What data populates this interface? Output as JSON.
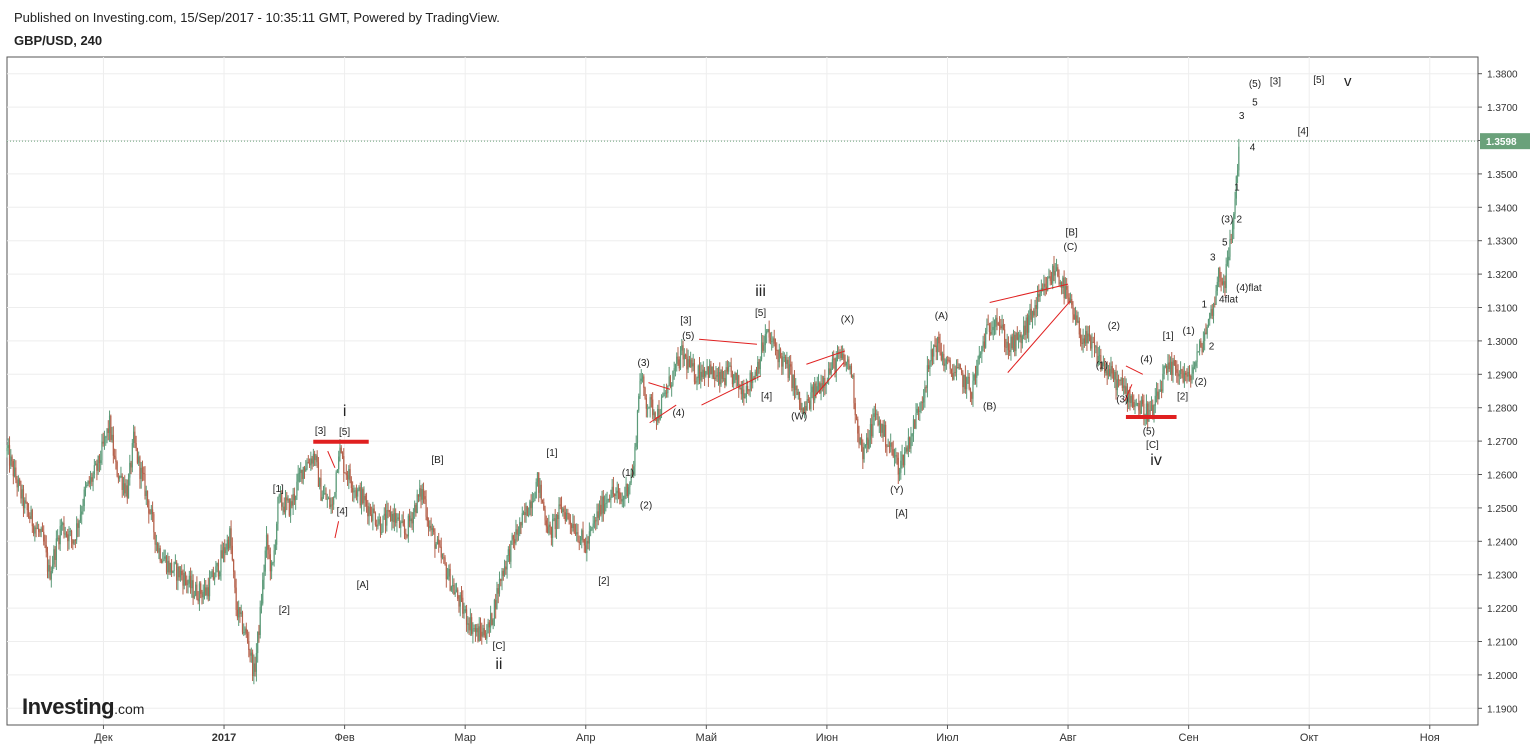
{
  "header": {
    "published": "Published on Investing.com, 15/Sep/2017 - 10:35:11 GMT, Powered by TradingView.",
    "symbol": "GBP/USD, 240"
  },
  "logo": {
    "main": "Investing",
    "suffix": ".com"
  },
  "chart_data": {
    "type": "candlestick",
    "title": "GBP/USD, 240",
    "ylim": [
      1.185,
      1.385
    ],
    "y_ticks": [
      "1.3800",
      "1.3700",
      "1.3600",
      "1.3500",
      "1.3400",
      "1.3300",
      "1.3200",
      "1.3100",
      "1.3000",
      "1.2900",
      "1.2800",
      "1.2700",
      "1.2600",
      "1.2500",
      "1.2400",
      "1.2300",
      "1.2200",
      "1.2100",
      "1.2000",
      "1.1900"
    ],
    "x_ticks": [
      {
        "label": "Дек",
        "t": 0.8
      },
      {
        "label": "2017",
        "t": 1.8
      },
      {
        "label": "Фев",
        "t": 2.8
      },
      {
        "label": "Мар",
        "t": 3.8
      },
      {
        "label": "Апр",
        "t": 4.8
      },
      {
        "label": "Май",
        "t": 5.8
      },
      {
        "label": "Июн",
        "t": 6.8
      },
      {
        "label": "Июл",
        "t": 7.8
      },
      {
        "label": "Авг",
        "t": 8.8
      },
      {
        "label": "Сен",
        "t": 9.8
      },
      {
        "label": "Окт",
        "t": 10.8
      },
      {
        "label": "Ноя",
        "t": 11.8
      }
    ],
    "bold_x_tick": "2017",
    "xlim": [
      0,
      12.2
    ],
    "last_price": {
      "value": 1.3598,
      "label": "1.3598",
      "color": "#6aa17a"
    },
    "colors": {
      "up": "#5b9a78",
      "down": "#b5604a",
      "annotation_line": "#e02020",
      "grid": "#eeeeee"
    },
    "price_path": [
      [
        0.0,
        1.267
      ],
      [
        0.15,
        1.25
      ],
      [
        0.3,
        1.24
      ],
      [
        0.35,
        1.23
      ],
      [
        0.45,
        1.245
      ],
      [
        0.55,
        1.24
      ],
      [
        0.65,
        1.255
      ],
      [
        0.75,
        1.262
      ],
      [
        0.85,
        1.275
      ],
      [
        0.9,
        1.262
      ],
      [
        1.0,
        1.255
      ],
      [
        1.05,
        1.27
      ],
      [
        1.1,
        1.262
      ],
      [
        1.15,
        1.255
      ],
      [
        1.25,
        1.238
      ],
      [
        1.35,
        1.232
      ],
      [
        1.45,
        1.23
      ],
      [
        1.55,
        1.225
      ],
      [
        1.65,
        1.225
      ],
      [
        1.75,
        1.232
      ],
      [
        1.85,
        1.242
      ],
      [
        1.9,
        1.22
      ],
      [
        2.0,
        1.21
      ],
      [
        2.05,
        1.2
      ],
      [
        2.1,
        1.218
      ],
      [
        2.15,
        1.24
      ],
      [
        2.2,
        1.23
      ],
      [
        2.25,
        1.252
      ],
      [
        2.35,
        1.25
      ],
      [
        2.45,
        1.262
      ],
      [
        2.55,
        1.266
      ],
      [
        2.6,
        1.255
      ],
      [
        2.7,
        1.25
      ],
      [
        2.75,
        1.268
      ],
      [
        2.8,
        1.262
      ],
      [
        2.9,
        1.255
      ],
      [
        3.0,
        1.25
      ],
      [
        3.1,
        1.245
      ],
      [
        3.2,
        1.248
      ],
      [
        3.3,
        1.242
      ],
      [
        3.4,
        1.252
      ],
      [
        3.45,
        1.255
      ],
      [
        3.5,
        1.245
      ],
      [
        3.6,
        1.235
      ],
      [
        3.7,
        1.226
      ],
      [
        3.8,
        1.218
      ],
      [
        3.9,
        1.212
      ],
      [
        4.0,
        1.214
      ],
      [
        4.1,
        1.23
      ],
      [
        4.2,
        1.24
      ],
      [
        4.3,
        1.248
      ],
      [
        4.4,
        1.258
      ],
      [
        4.5,
        1.242
      ],
      [
        4.6,
        1.25
      ],
      [
        4.7,
        1.245
      ],
      [
        4.8,
        1.238
      ],
      [
        4.9,
        1.248
      ],
      [
        5.0,
        1.255
      ],
      [
        5.1,
        1.252
      ],
      [
        5.2,
        1.262
      ],
      [
        5.25,
        1.29
      ],
      [
        5.3,
        1.282
      ],
      [
        5.4,
        1.278
      ],
      [
        5.5,
        1.288
      ],
      [
        5.6,
        1.296
      ],
      [
        5.7,
        1.29
      ],
      [
        5.8,
        1.292
      ],
      [
        5.9,
        1.288
      ],
      [
        6.0,
        1.29
      ],
      [
        6.1,
        1.285
      ],
      [
        6.2,
        1.29
      ],
      [
        6.3,
        1.302
      ],
      [
        6.4,
        1.296
      ],
      [
        6.5,
        1.29
      ],
      [
        6.6,
        1.278
      ],
      [
        6.7,
        1.285
      ],
      [
        6.8,
        1.29
      ],
      [
        6.9,
        1.295
      ],
      [
        7.0,
        1.292
      ],
      [
        7.05,
        1.275
      ],
      [
        7.1,
        1.265
      ],
      [
        7.2,
        1.278
      ],
      [
        7.3,
        1.27
      ],
      [
        7.4,
        1.262
      ],
      [
        7.5,
        1.272
      ],
      [
        7.6,
        1.285
      ],
      [
        7.7,
        1.3
      ],
      [
        7.8,
        1.292
      ],
      [
        7.9,
        1.29
      ],
      [
        8.0,
        1.285
      ],
      [
        8.1,
        1.3
      ],
      [
        8.2,
        1.308
      ],
      [
        8.3,
        1.298
      ],
      [
        8.4,
        1.3
      ],
      [
        8.5,
        1.308
      ],
      [
        8.6,
        1.315
      ],
      [
        8.7,
        1.322
      ],
      [
        8.8,
        1.312
      ],
      [
        8.9,
        1.302
      ],
      [
        9.0,
        1.298
      ],
      [
        9.1,
        1.292
      ],
      [
        9.2,
        1.288
      ],
      [
        9.3,
        1.284
      ],
      [
        9.4,
        1.28
      ],
      [
        9.5,
        1.278
      ],
      [
        9.6,
        1.29
      ],
      [
        9.7,
        1.292
      ],
      [
        9.8,
        1.288
      ],
      [
        9.9,
        1.298
      ],
      [
        10.0,
        1.31
      ],
      [
        10.05,
        1.32
      ],
      [
        10.1,
        1.318
      ],
      [
        10.15,
        1.33
      ],
      [
        10.18,
        1.34
      ],
      [
        10.2,
        1.35
      ],
      [
        10.22,
        1.3598
      ]
    ],
    "annotations": [
      {
        "text": "i",
        "t": 2.8,
        "p": 1.2775,
        "size": 16
      },
      {
        "text": "[3]",
        "t": 2.6,
        "p": 1.2722
      },
      {
        "text": "[5]",
        "t": 2.8,
        "p": 1.2718
      },
      {
        "text": "[1]",
        "t": 2.25,
        "p": 1.2547
      },
      {
        "text": "[2]",
        "t": 2.3,
        "p": 1.2185
      },
      {
        "text": "[4]",
        "t": 2.78,
        "p": 1.248
      },
      {
        "text": "[A]",
        "t": 2.95,
        "p": 1.226
      },
      {
        "text": "[B]",
        "t": 3.57,
        "p": 1.2635
      },
      {
        "text": "[C]",
        "t": 4.08,
        "p": 1.2078
      },
      {
        "text": "ii",
        "t": 4.08,
        "p": 1.2018,
        "size": 16
      },
      {
        "text": "[1]",
        "t": 4.52,
        "p": 1.2655
      },
      {
        "text": "[2]",
        "t": 4.95,
        "p": 1.2272
      },
      {
        "text": "(1)",
        "t": 5.15,
        "p": 1.2595
      },
      {
        "text": "(2)",
        "t": 5.3,
        "p": 1.2498
      },
      {
        "text": "(3)",
        "t": 5.28,
        "p": 1.2925
      },
      {
        "text": "(4)",
        "t": 5.57,
        "p": 1.2775
      },
      {
        "text": "[3]",
        "t": 5.63,
        "p": 1.3052
      },
      {
        "text": "(5)",
        "t": 5.65,
        "p": 1.3005
      },
      {
        "text": "[4]",
        "t": 6.3,
        "p": 1.2825
      },
      {
        "text": "[5]",
        "t": 6.25,
        "p": 1.3075
      },
      {
        "text": "iii",
        "t": 6.25,
        "p": 1.3135,
        "size": 16
      },
      {
        "text": "(W)",
        "t": 6.57,
        "p": 1.2765
      },
      {
        "text": "(X)",
        "t": 6.97,
        "p": 1.3055
      },
      {
        "text": "(Y)",
        "t": 7.38,
        "p": 1.2545
      },
      {
        "text": "[A]",
        "t": 7.42,
        "p": 1.2475
      },
      {
        "text": "(A)",
        "t": 7.75,
        "p": 1.3065
      },
      {
        "text": "(B)",
        "t": 8.15,
        "p": 1.2795
      },
      {
        "text": "(C)",
        "t": 8.82,
        "p": 1.3272
      },
      {
        "text": "[B]",
        "t": 8.83,
        "p": 1.3315
      },
      {
        "text": "(2)",
        "t": 9.18,
        "p": 1.3035
      },
      {
        "text": "(1)",
        "t": 9.08,
        "p": 1.2918
      },
      {
        "text": "(4)",
        "t": 9.45,
        "p": 1.2935
      },
      {
        "text": "(3)",
        "t": 9.25,
        "p": 1.2815
      },
      {
        "text": "(5)",
        "t": 9.47,
        "p": 1.272
      },
      {
        "text": "[C]",
        "t": 9.5,
        "p": 1.268
      },
      {
        "text": "iv",
        "t": 9.53,
        "p": 1.2628,
        "size": 16
      },
      {
        "text": "[1]",
        "t": 9.63,
        "p": 1.3005
      },
      {
        "text": "[2]",
        "t": 9.75,
        "p": 1.2825
      },
      {
        "text": "(1)",
        "t": 9.8,
        "p": 1.302
      },
      {
        "text": "(2)",
        "t": 9.9,
        "p": 1.2868
      },
      {
        "text": "2",
        "t": 9.99,
        "p": 1.2975
      },
      {
        "text": "1",
        "t": 9.93,
        "p": 1.31
      },
      {
        "text": "4flat",
        "t": 10.13,
        "p": 1.3115
      },
      {
        "text": "3",
        "t": 10.0,
        "p": 1.324
      },
      {
        "text": "5",
        "t": 10.1,
        "p": 1.3285
      },
      {
        "text": "(3)",
        "t": 10.12,
        "p": 1.3355
      },
      {
        "text": "2",
        "t": 10.22,
        "p": 1.3355
      },
      {
        "text": "(4)flat",
        "t": 10.3,
        "p": 1.315
      },
      {
        "text": "1",
        "t": 10.2,
        "p": 1.345
      },
      {
        "text": "4",
        "t": 10.33,
        "p": 1.357
      },
      {
        "text": "3",
        "t": 10.24,
        "p": 1.3665
      },
      {
        "text": "5",
        "t": 10.35,
        "p": 1.3705
      },
      {
        "text": "(5)",
        "t": 10.35,
        "p": 1.376
      },
      {
        "text": "[3]",
        "t": 10.52,
        "p": 1.3767
      },
      {
        "text": "[5]",
        "t": 10.88,
        "p": 1.3772
      },
      {
        "text": "v",
        "t": 11.12,
        "p": 1.3763,
        "size": 15
      },
      {
        "text": "[4]",
        "t": 10.75,
        "p": 1.3618
      }
    ],
    "support_lines": [
      {
        "t1": 2.54,
        "t2": 3.0,
        "p": 1.2698,
        "width": 4
      },
      {
        "t1": 9.28,
        "t2": 9.7,
        "p": 1.2772,
        "width": 4
      }
    ],
    "channel_lines": [
      [
        [
          5.32,
          1.2875
        ],
        [
          5.5,
          1.2855
        ]
      ],
      [
        [
          5.33,
          1.2755
        ],
        [
          5.55,
          1.2808
        ]
      ],
      [
        [
          5.74,
          1.3005
        ],
        [
          6.22,
          1.299
        ]
      ],
      [
        [
          5.76,
          1.2808
        ],
        [
          6.25,
          1.2895
        ]
      ],
      [
        [
          6.63,
          1.293
        ],
        [
          6.95,
          1.297
        ]
      ],
      [
        [
          6.7,
          1.2835
        ],
        [
          6.94,
          1.2935
        ]
      ],
      [
        [
          8.15,
          1.3115
        ],
        [
          8.8,
          1.317
        ]
      ],
      [
        [
          8.3,
          1.2905
        ],
        [
          8.82,
          1.312
        ]
      ],
      [
        [
          9.28,
          1.2925
        ],
        [
          9.42,
          1.29
        ]
      ],
      [
        [
          9.27,
          1.282
        ],
        [
          9.33,
          1.287
        ]
      ],
      [
        [
          2.66,
          1.267
        ],
        [
          2.72,
          1.262
        ]
      ],
      [
        [
          2.72,
          1.241
        ],
        [
          2.75,
          1.246
        ]
      ]
    ]
  }
}
